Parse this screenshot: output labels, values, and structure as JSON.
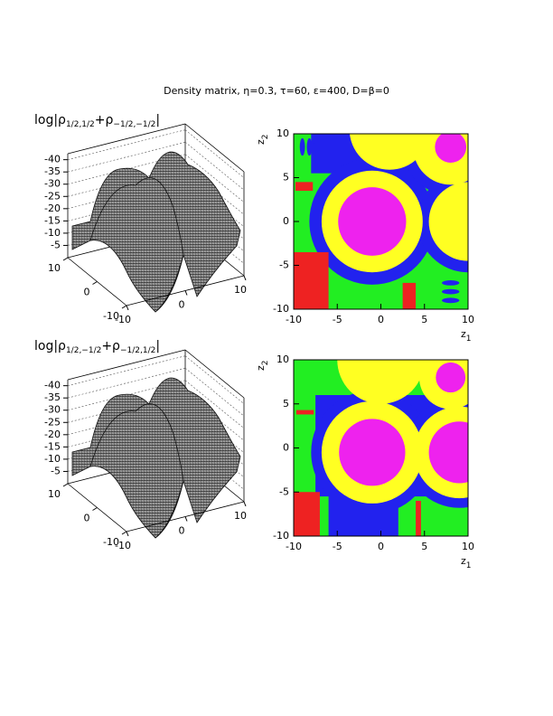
{
  "figure_title": "Density matrix, η=0.3, τ=60, ε=400, D=β=0",
  "chart_data": [
    {
      "type": "surface",
      "label": [
        "log|ρ",
        "1/2,1/2",
        "+ρ",
        "−1/2,−1/2",
        "|"
      ],
      "zlim": [
        -45,
        0
      ],
      "zticks": [
        -5,
        -10,
        -15,
        -20,
        -25,
        -30,
        -35,
        -40
      ],
      "xlim": [
        -10,
        10
      ],
      "xticks": [
        -10,
        0,
        10
      ],
      "ylim": [
        -10,
        10
      ],
      "yticks": [
        -10,
        0,
        10
      ]
    },
    {
      "type": "map",
      "xlabel": [
        "z",
        "1"
      ],
      "ylabel": [
        "z",
        "2"
      ],
      "xlim": [
        -10,
        10
      ],
      "xticks": [
        -10,
        -5,
        0,
        5,
        10
      ],
      "ylim": [
        -10,
        10
      ],
      "yticks": [
        -10,
        -5,
        0,
        5,
        10
      ]
    },
    {
      "type": "surface",
      "label": [
        "log|ρ",
        "1/2,−1/2",
        "+ρ",
        "−1/2,1/2",
        "|"
      ],
      "zlim": [
        -45,
        0
      ],
      "zticks": [
        -5,
        -10,
        -15,
        -20,
        -25,
        -30,
        -35,
        -40
      ],
      "xlim": [
        -10,
        10
      ],
      "xticks": [
        -10,
        0,
        10
      ],
      "ylim": [
        -10,
        10
      ],
      "yticks": [
        -10,
        0,
        10
      ]
    },
    {
      "type": "map",
      "xlabel": [
        "z",
        "1"
      ],
      "ylabel": [
        "z",
        "2"
      ],
      "xlim": [
        -10,
        10
      ],
      "xticks": [
        -10,
        -5,
        0,
        5,
        10
      ],
      "ylim": [
        -10,
        10
      ],
      "yticks": [
        -10,
        -5,
        0,
        5,
        10
      ]
    }
  ]
}
